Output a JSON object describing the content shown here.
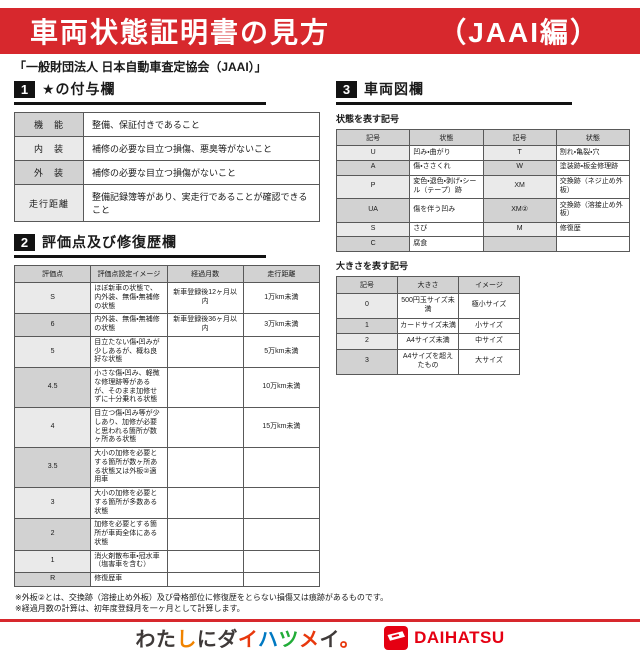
{
  "banner": {
    "title": "車両状態証明書の見方",
    "edition": "（JAAI編）"
  },
  "org_line": "「一般財団法人 日本自動車査定協会（JAAI）」",
  "section1": {
    "number": "1",
    "title": "★の付与欄",
    "rows": [
      [
        "機　能",
        "整備、保証付きであること"
      ],
      [
        "内　装",
        "補修の必要な目立つ損傷、悪臭等がないこと"
      ],
      [
        "外　装",
        "補修の必要な目立つ損傷がないこと"
      ],
      [
        "走行距離",
        "整備記録簿等があり、実走行であることが確認できること"
      ]
    ]
  },
  "section2": {
    "number": "2",
    "title": "評価点及び修復歴欄",
    "headers": [
      "評価点",
      "評価点設定イメージ",
      "経過月数",
      "走行距離"
    ],
    "rows": [
      [
        "S",
        "ほぼ新車の状態で、内外装、無傷・無補修の状態",
        "新車登録後12ヶ月以内",
        "1万km未満"
      ],
      [
        "6",
        "内外装、無傷・無補修の状態",
        "新車登録後36ヶ月以内",
        "3万km未満"
      ],
      [
        "5",
        "目立たない傷・凹みが少しあるが、概ね良好な状態",
        "",
        "5万km未満"
      ],
      [
        "4.5",
        "小さな傷・凹み、軽微な修理跡等があるが、そのまま加修せずに十分乗れる状態",
        "",
        "10万km未満"
      ],
      [
        "4",
        "目立つ傷・凹み等が少しあり、加修が必要と思われる箇所が数ヶ所ある状態",
        "",
        "15万km未満"
      ],
      [
        "3.5",
        "大小の加修を必要とする箇所が数ヶ所ある状態又は外板②適用車",
        "",
        ""
      ],
      [
        "3",
        "大小の加修を必要とする箇所が多数ある状態",
        "",
        ""
      ],
      [
        "2",
        "加修を必要とする箇所が車両全体にある状態",
        "",
        ""
      ],
      [
        "1",
        "消火剤散布車・冠水車（塩害車を含む）",
        "",
        ""
      ],
      [
        "R",
        "修復歴車",
        "",
        ""
      ]
    ]
  },
  "section3": {
    "number": "3",
    "title": "車両図欄",
    "condition_table": {
      "caption": "状態を表す記号",
      "headers": [
        "記号",
        "状態",
        "記号",
        "状態"
      ],
      "rows": [
        [
          "U",
          "凹み・曲がり",
          "T",
          "割れ・亀裂・穴"
        ],
        [
          "A",
          "傷・ささくれ",
          "W",
          "塗装跡・板金修理跡"
        ],
        [
          "P",
          "変色・退色・剥げ・シール（テープ）跡",
          "XM",
          "交換跡（ネジ止め外板）"
        ],
        [
          "UA",
          "傷を伴う凹み",
          "XM②",
          "交換跡（溶接止め外板）"
        ],
        [
          "S",
          "さび",
          "M",
          "修復歴"
        ],
        [
          "C",
          "腐食",
          "",
          ""
        ]
      ]
    },
    "size_table": {
      "caption": "大きさを表す記号",
      "headers": [
        "記号",
        "大きさ",
        "イメージ"
      ],
      "rows": [
        [
          "0",
          "500円玉サイズ未満",
          "極小サイズ"
        ],
        [
          "1",
          "カードサイズ未満",
          "小サイズ"
        ],
        [
          "2",
          "A4サイズ未満",
          "中サイズ"
        ],
        [
          "3",
          "A4サイズを超えたもの",
          "大サイズ"
        ]
      ]
    }
  },
  "notes": [
    "※外板②とは、交換跡（溶接止め外板）及び骨格部位に修復歴をとらない損傷又は痕跡があるものです。",
    "※経過月数の計算は、初年度登録月を一ヶ月として計算します。"
  ],
  "footer": {
    "slogan_chars": [
      {
        "ch": "わ",
        "color": "#3f3a39"
      },
      {
        "ch": "た",
        "color": "#3f3a39"
      },
      {
        "ch": "し",
        "color": "#f08300"
      },
      {
        "ch": "に",
        "color": "#3f3a39"
      },
      {
        "ch": "ダ",
        "color": "#3f3a39"
      },
      {
        "ch": "イ",
        "color": "#e8380d"
      },
      {
        "ch": "ハ",
        "color": "#0079c2"
      },
      {
        "ch": "ツ",
        "color": "#22ac38"
      },
      {
        "ch": "メ",
        "color": "#e8380d"
      },
      {
        "ch": "イ",
        "color": "#3f3a39"
      },
      {
        "ch": "。",
        "color": "#e8380d"
      }
    ],
    "brand": "DAIHATSU"
  },
  "colors": {
    "banner_red": "#d7282d",
    "brand_red": "#e50012",
    "header_gray": "#d2d2d2",
    "row_gray_light": "#eaeaea",
    "section_black": "#121212"
  }
}
